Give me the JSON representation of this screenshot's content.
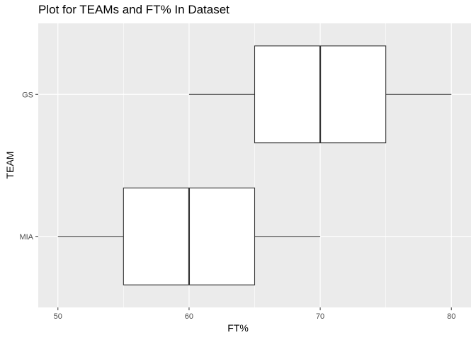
{
  "chart_data": {
    "type": "boxplot",
    "title": "Plot for TEAMs and FT% In Dataset",
    "xlabel": "FT%",
    "ylabel": "TEAM",
    "orientation": "horizontal",
    "xlim": [
      48.5,
      81.5
    ],
    "x_ticks": [
      50,
      60,
      70,
      80
    ],
    "categories": [
      "GS",
      "MIA"
    ],
    "boxes": [
      {
        "category": "GS",
        "min": 60,
        "q1": 65,
        "median": 70,
        "q3": 75,
        "max": 80
      },
      {
        "category": "MIA",
        "min": 50,
        "q1": 55,
        "median": 60,
        "q3": 65,
        "max": 70
      }
    ],
    "grid": true,
    "legend": "none",
    "colors": {
      "panel": "#ebebeb",
      "grid": "#ffffff",
      "box_fill": "#ffffff",
      "box_line": "#333333",
      "tick_text": "#4d4d4d"
    }
  }
}
